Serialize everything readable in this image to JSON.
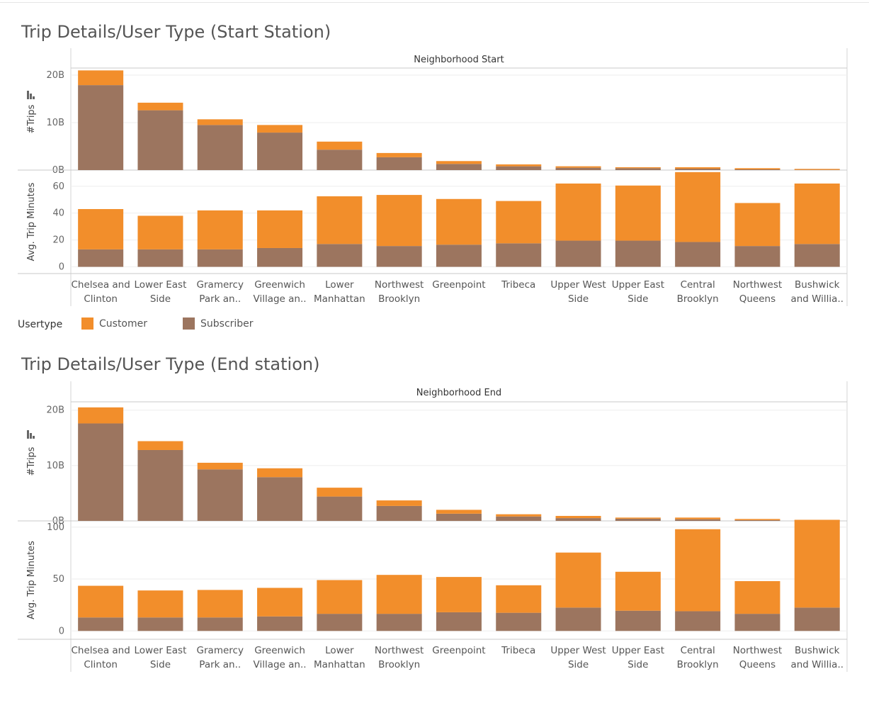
{
  "colors": {
    "customer": "#F28E2B",
    "subscriber": "#9C755F"
  },
  "legend": {
    "title": "Usertype",
    "customer_label": "Customer",
    "subscriber_label": "Subscriber"
  },
  "chart_data": [
    {
      "type": "bar",
      "stacked": true,
      "title": "Trip Details/User Type  (Start Station)",
      "column_header": "Neighborhood Start",
      "categories": [
        [
          "Chelsea and",
          "Clinton"
        ],
        [
          "Lower East",
          "Side"
        ],
        [
          "Gramercy",
          "Park an.."
        ],
        [
          "Greenwich",
          "Village an.."
        ],
        [
          "Lower",
          "Manhattan"
        ],
        [
          "Northwest",
          "Brooklyn"
        ],
        [
          "Greenpoint",
          ""
        ],
        [
          "Tribeca",
          ""
        ],
        [
          "Upper West",
          "Side"
        ],
        [
          "Upper East",
          "Side"
        ],
        [
          "Central",
          "Brooklyn"
        ],
        [
          "Northwest",
          "Queens"
        ],
        [
          "Bushwick",
          "and Willia.."
        ]
      ],
      "trips": {
        "ylabel": "#Trips",
        "ylim": [
          0,
          21.5
        ],
        "ticks": [
          0,
          10,
          20
        ],
        "tick_labels": [
          "0B",
          "10B",
          "20B"
        ],
        "series": [
          {
            "name": "Subscriber",
            "values": [
              17.9,
              12.6,
              9.5,
              7.9,
              4.3,
              2.7,
              1.3,
              0.8,
              0.5,
              0.4,
              0.3,
              0.15,
              0.05
            ]
          },
          {
            "name": "Customer",
            "values": [
              3.1,
              1.6,
              1.2,
              1.6,
              1.7,
              0.9,
              0.6,
              0.4,
              0.3,
              0.2,
              0.3,
              0.25,
              0.2
            ]
          }
        ]
      },
      "minutes": {
        "ylabel": "Avg. Trip Minutes",
        "ylim": [
          -5,
          72
        ],
        "ticks": [
          0,
          20,
          40,
          60
        ],
        "tick_labels": [
          "0",
          "20",
          "40",
          "60"
        ],
        "series": [
          {
            "name": "Subscriber",
            "values": [
              13,
              13,
              13,
              14,
              17,
              15.5,
              16.5,
              17.5,
              19.5,
              19.5,
              18.5,
              15.5,
              17
            ]
          },
          {
            "name": "Customer",
            "values": [
              30,
              25,
              29,
              28,
              35.5,
              38,
              34,
              31.5,
              42.5,
              41,
              52,
              32,
              45
            ]
          }
        ]
      }
    },
    {
      "type": "bar",
      "stacked": true,
      "title": "Trip Details/User Type (End station)",
      "column_header": "Neighborhood End",
      "categories": [
        [
          "Chelsea and",
          "Clinton"
        ],
        [
          "Lower East",
          "Side"
        ],
        [
          "Gramercy",
          "Park an.."
        ],
        [
          "Greenwich",
          "Village an.."
        ],
        [
          "Lower",
          "Manhattan"
        ],
        [
          "Northwest",
          "Brooklyn"
        ],
        [
          "Greenpoint",
          ""
        ],
        [
          "Tribeca",
          ""
        ],
        [
          "Upper West",
          "Side"
        ],
        [
          "Upper East",
          "Side"
        ],
        [
          "Central",
          "Brooklyn"
        ],
        [
          "Northwest",
          "Queens"
        ],
        [
          "Bushwick",
          "and Willia.."
        ]
      ],
      "trips": {
        "ylabel": "#Trips",
        "ylim": [
          0,
          21.5
        ],
        "ticks": [
          0,
          10,
          20
        ],
        "tick_labels": [
          "0B",
          "10B",
          "20B"
        ],
        "series": [
          {
            "name": "Subscriber",
            "values": [
              17.6,
              12.8,
              9.3,
              7.9,
              4.4,
              2.7,
              1.3,
              0.8,
              0.5,
              0.4,
              0.3,
              0.15,
              0.05
            ]
          },
          {
            "name": "Customer",
            "values": [
              2.9,
              1.6,
              1.2,
              1.6,
              1.6,
              1.0,
              0.7,
              0.4,
              0.4,
              0.2,
              0.3,
              0.2,
              0.15
            ]
          }
        ]
      },
      "minutes": {
        "ylabel": "Avg. Trip Minutes",
        "ylim": [
          -8,
          106
        ],
        "ticks": [
          0,
          50,
          100
        ],
        "tick_labels": [
          "0",
          "50",
          "100"
        ],
        "series": [
          {
            "name": "Subscriber",
            "values": [
              13,
              13,
              13,
              14,
              16.5,
              16.5,
              18,
              17.5,
              22.5,
              19.5,
              19,
              16.5,
              22.5
            ]
          },
          {
            "name": "Customer",
            "values": [
              30.5,
              26,
              26.5,
              27.5,
              32.5,
              37.5,
              34,
              26.5,
              53,
              37.5,
              79,
              31.5,
              84
            ]
          }
        ]
      }
    }
  ]
}
